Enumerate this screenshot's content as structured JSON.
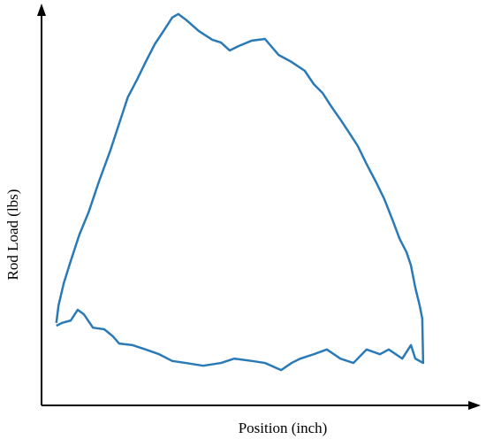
{
  "chart_data": {
    "type": "line",
    "x_label": "Position (inch)",
    "y_label": "Rod Load (lbs)",
    "xlim": [
      0,
      100
    ],
    "ylim": [
      0,
      100
    ],
    "series": [
      {
        "color": "#2a7ab8",
        "x": [
          3.4,
          3.9,
          5.1,
          6.7,
          8.7,
          10.8,
          13.2,
          15.8,
          17.8,
          19.8,
          21.9,
          23.9,
          26.0,
          28.0,
          30.0,
          31.4,
          33.1,
          36.1,
          39.2,
          41.2,
          43.2,
          45.2,
          48.3,
          51.3,
          52.3,
          54.4,
          57.4,
          60.4,
          62.5,
          64.5,
          66.5,
          68.6,
          70.6,
          72.6,
          74.6,
          76.7,
          78.7,
          80.7,
          82.2,
          83.8,
          84.8,
          85.8,
          86.8,
          87.4,
          87.6,
          85.8,
          84.8,
          82.8,
          79.7,
          77.7,
          74.6,
          71.6,
          68.6,
          65.5,
          62.5,
          59.4,
          57.4,
          55.0,
          51.3,
          48.3,
          44.2,
          41.2,
          37.1,
          33.1,
          30.0,
          27.0,
          23.9,
          20.9,
          17.8,
          16.4,
          14.4,
          11.8,
          9.7,
          8.3,
          6.7,
          4.7,
          3.4
        ],
        "values": [
          20.8,
          25.2,
          30.8,
          36.4,
          43.1,
          48.7,
          56.5,
          64.3,
          71.0,
          77.7,
          82.1,
          86.6,
          91.1,
          94.4,
          97.8,
          98.7,
          97.3,
          94.4,
          92.2,
          91.5,
          89.5,
          90.6,
          92.0,
          92.4,
          91.1,
          88.4,
          86.6,
          84.4,
          81.0,
          78.8,
          75.4,
          72.1,
          68.8,
          65.4,
          60.9,
          56.5,
          52.0,
          46.4,
          42.0,
          38.6,
          35.3,
          29.7,
          25.2,
          21.9,
          10.7,
          11.8,
          15.2,
          11.8,
          14.1,
          12.9,
          14.1,
          10.7,
          11.8,
          14.1,
          12.9,
          11.8,
          10.7,
          8.9,
          10.7,
          11.2,
          11.8,
          10.7,
          10.0,
          10.7,
          11.2,
          12.9,
          14.1,
          15.2,
          15.6,
          17.4,
          19.2,
          19.6,
          23.0,
          24.1,
          21.4,
          20.8,
          20.1
        ]
      }
    ]
  }
}
